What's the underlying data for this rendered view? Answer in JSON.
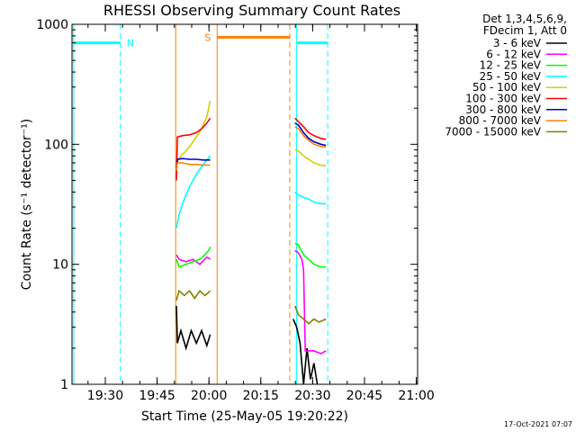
{
  "chart_data": {
    "type": "line",
    "title": "RHESSI Observing Summary Count Rates",
    "xlabel": "Start Time (25-May-05 19:20:22)",
    "ylabel": "Count Rate (s⁻¹ detector⁻¹)",
    "yscale": "log",
    "ylim": [
      1,
      1000
    ],
    "xlim_minutes": [
      0,
      100
    ],
    "x_tick_labels": [
      "19:30",
      "19:45",
      "20:00",
      "20:15",
      "20:30",
      "20:45",
      "21:00"
    ],
    "y_tick_labels": [
      "1",
      "10",
      "100",
      "1000"
    ],
    "legend_header": [
      "Det 1,3,4,5,6,9,",
      "FDecim 1, Att 0"
    ],
    "timestamp": "17-Oct-2021 07:07",
    "flags": [
      {
        "label": "N",
        "color": "#00ffff",
        "start_min": 0.5,
        "end_min": 14,
        "y": 700
      },
      {
        "label": "S",
        "color": "#ff8000",
        "start_min": 42,
        "end_min": 63,
        "y": 780
      },
      {
        "label": "",
        "color": "#00ffff",
        "start_min": 65,
        "end_min": 74,
        "y": 700
      }
    ],
    "markers": [
      {
        "time_min": 0.5,
        "color": "#00ffff",
        "style": "solid"
      },
      {
        "time_min": 14,
        "color": "#00ffff",
        "style": "dashed"
      },
      {
        "time_min": 30,
        "color": "#ff8000",
        "style": "solid"
      },
      {
        "time_min": 42,
        "color": "#ff8000",
        "style": "solid"
      },
      {
        "time_min": 63,
        "color": "#ff8000",
        "style": "dashed"
      },
      {
        "time_min": 65,
        "color": "#00ffff",
        "style": "solid"
      },
      {
        "time_min": 74,
        "color": "#00ffff",
        "style": "dashed"
      }
    ],
    "series": [
      {
        "name": "3 - 6 keV",
        "color": "#000000",
        "segments": [
          [
            [
              30.2,
              4.5
            ],
            [
              30.5,
              2.2
            ],
            [
              31.5,
              2.8
            ],
            [
              33,
              2.0
            ],
            [
              34.5,
              2.8
            ],
            [
              36,
              2.2
            ],
            [
              37.5,
              2.8
            ],
            [
              39,
              2.1
            ],
            [
              40,
              2.6
            ]
          ],
          [
            [
              64,
              3.5
            ],
            [
              65,
              3.0
            ],
            [
              66,
              2.2
            ],
            [
              67,
              1.0
            ],
            [
              68,
              2.0
            ],
            [
              69,
              1.1
            ],
            [
              70,
              1.5
            ],
            [
              71,
              1.0
            ]
          ]
        ]
      },
      {
        "name": "6 - 12 keV",
        "color": "#ff00ff",
        "segments": [
          [
            [
              30.2,
              12
            ],
            [
              31,
              11
            ],
            [
              33,
              10.5
            ],
            [
              35,
              11
            ],
            [
              37,
              10
            ],
            [
              39,
              11.5
            ],
            [
              40,
              11
            ]
          ],
          [
            [
              64.5,
              13
            ],
            [
              65.5,
              12.5
            ],
            [
              66.5,
              11
            ],
            [
              67,
              9
            ],
            [
              67.5,
              1.9
            ],
            [
              70,
              1.9
            ],
            [
              72,
              1.8
            ],
            [
              73.5,
              1.9
            ]
          ]
        ]
      },
      {
        "name": "12 - 25 keV",
        "color": "#00ff00",
        "segments": [
          [
            [
              30.2,
              11
            ],
            [
              31,
              9.5
            ],
            [
              33,
              10
            ],
            [
              35,
              10.5
            ],
            [
              37,
              11
            ],
            [
              38.5,
              12
            ],
            [
              39.5,
              13
            ],
            [
              40,
              14
            ]
          ],
          [
            [
              64.5,
              15
            ],
            [
              65.5,
              14.5
            ],
            [
              67,
              12
            ],
            [
              68.5,
              11
            ],
            [
              70,
              10
            ],
            [
              72,
              9.5
            ],
            [
              73.5,
              9.5
            ]
          ]
        ]
      },
      {
        "name": "25 - 50 keV",
        "color": "#00ffff",
        "segments": [
          [
            [
              30.2,
              20
            ],
            [
              31,
              26
            ],
            [
              32,
              32
            ],
            [
              33,
              38
            ],
            [
              34,
              44
            ],
            [
              35,
              50
            ],
            [
              36,
              56
            ],
            [
              37,
              62
            ],
            [
              38,
              68
            ],
            [
              39,
              74
            ],
            [
              40,
              80
            ]
          ],
          [
            [
              64.5,
              40
            ],
            [
              65.5,
              38
            ],
            [
              67,
              36
            ],
            [
              68.5,
              35
            ],
            [
              70,
              33
            ],
            [
              72,
              32
            ],
            [
              73.5,
              32
            ]
          ]
        ]
      },
      {
        "name": "50 - 100 keV",
        "color": "#d0d000",
        "segments": [
          [
            [
              30.2,
              70
            ],
            [
              31.5,
              80
            ],
            [
              33,
              88
            ],
            [
              34.5,
              100
            ],
            [
              36,
              115
            ],
            [
              37.5,
              135
            ],
            [
              39,
              170
            ],
            [
              40,
              230
            ]
          ],
          [
            [
              64.5,
              90
            ],
            [
              65.5,
              88
            ],
            [
              67,
              80
            ],
            [
              68.5,
              75
            ],
            [
              70,
              70
            ],
            [
              72,
              67
            ],
            [
              73.5,
              66
            ]
          ]
        ]
      },
      {
        "name": "100 - 300 keV",
        "color": "#ff0000",
        "segments": [
          [
            [
              30.2,
              50
            ],
            [
              30.5,
              115
            ],
            [
              32,
              118
            ],
            [
              34,
              120
            ],
            [
              36,
              125
            ],
            [
              37.5,
              135
            ],
            [
              39,
              150
            ],
            [
              40,
              165
            ]
          ],
          [
            [
              64.5,
              165
            ],
            [
              65.5,
              155
            ],
            [
              67,
              140
            ],
            [
              68.5,
              125
            ],
            [
              70,
              118
            ],
            [
              72,
              112
            ],
            [
              73.5,
              110
            ]
          ]
        ]
      },
      {
        "name": "300 - 800 keV",
        "color": "#0000cc",
        "segments": [
          [
            [
              30.2,
              60
            ],
            [
              30.5,
              75
            ],
            [
              32,
              76
            ],
            [
              34,
              75
            ],
            [
              36,
              75
            ],
            [
              38,
              74
            ],
            [
              40,
              74
            ]
          ],
          [
            [
              64.5,
              150
            ],
            [
              65.5,
              145
            ],
            [
              67,
              125
            ],
            [
              68.5,
              112
            ],
            [
              70,
              105
            ],
            [
              72,
              100
            ],
            [
              73.5,
              98
            ]
          ]
        ]
      },
      {
        "name": "800 - 7000 keV",
        "color": "#ff8000",
        "segments": [
          [
            [
              30.2,
              60
            ],
            [
              30.5,
              70
            ],
            [
              32,
              70
            ],
            [
              34,
              68
            ],
            [
              36,
              68
            ],
            [
              38,
              67
            ],
            [
              40,
              67
            ]
          ],
          [
            [
              64.5,
              140
            ],
            [
              65.5,
              135
            ],
            [
              67,
              118
            ],
            [
              68.5,
              108
            ],
            [
              70,
              100
            ],
            [
              72,
              96
            ],
            [
              73.5,
              95
            ]
          ]
        ]
      },
      {
        "name": "7000 - 15000 keV",
        "color": "#808000",
        "segments": [
          [
            [
              30.2,
              5
            ],
            [
              31,
              6
            ],
            [
              32.5,
              5.5
            ],
            [
              34,
              6
            ],
            [
              35.5,
              5.2
            ],
            [
              37,
              6
            ],
            [
              38.5,
              5.5
            ],
            [
              40,
              6
            ]
          ],
          [
            [
              64.5,
              4.5
            ],
            [
              65.5,
              3.8
            ],
            [
              67,
              3.5
            ],
            [
              68.5,
              3.2
            ],
            [
              70,
              3.5
            ],
            [
              71.5,
              3.3
            ],
            [
              73.5,
              3.5
            ]
          ]
        ]
      }
    ]
  }
}
